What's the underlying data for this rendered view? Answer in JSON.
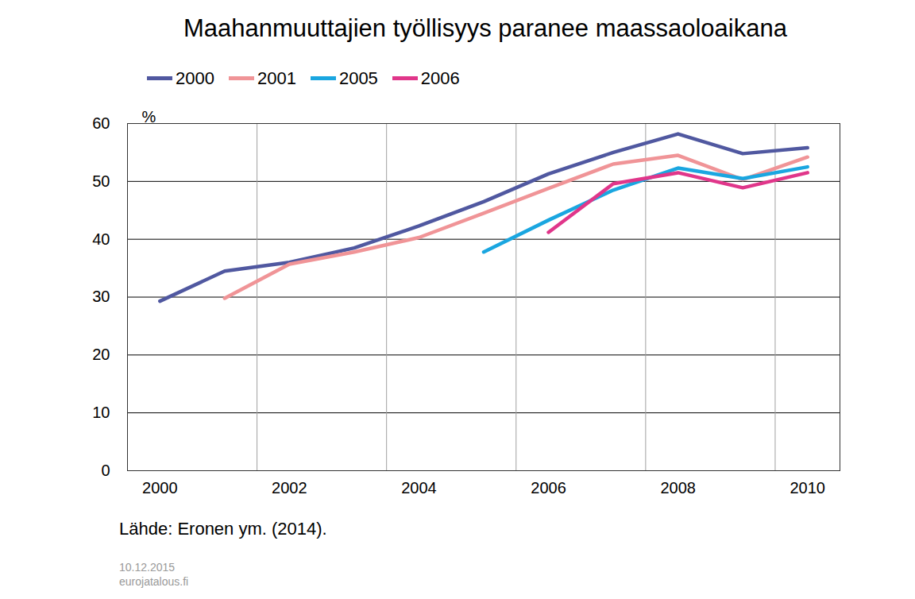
{
  "chart_data": {
    "type": "line",
    "title": "Maahanmuuttajien työllisyys paranee maassaoloaikana",
    "y_label": "%",
    "x": [
      2000,
      2001,
      2002,
      2003,
      2004,
      2005,
      2006,
      2007,
      2008,
      2009,
      2010
    ],
    "series": [
      {
        "name": "2000",
        "color": "#5058a0",
        "values": [
          29.3,
          34.5,
          36.0,
          38.5,
          42.3,
          46.5,
          51.3,
          55.0,
          58.2,
          54.8,
          55.8
        ]
      },
      {
        "name": "2001",
        "color": "#f09497",
        "values": [
          null,
          29.8,
          35.7,
          37.8,
          40.3,
          44.5,
          48.8,
          53.0,
          54.5,
          50.3,
          54.2
        ]
      },
      {
        "name": "2005",
        "color": "#1aa6e0",
        "values": [
          null,
          null,
          null,
          null,
          null,
          37.8,
          43.3,
          48.5,
          52.3,
          50.5,
          52.5
        ]
      },
      {
        "name": "2006",
        "color": "#e0368a",
        "values": [
          null,
          null,
          null,
          null,
          null,
          null,
          41.2,
          49.6,
          51.5,
          48.9,
          51.5
        ]
      }
    ],
    "xlim": [
      1999.5,
      2010.5
    ],
    "xticks": [
      2000,
      2002,
      2004,
      2006,
      2008,
      2010
    ],
    "ylim": [
      0,
      60
    ],
    "yticks": [
      0,
      10,
      20,
      30,
      40,
      50,
      60
    ],
    "grid": true,
    "legend": "top",
    "source": "Lähde: Eronen ym. (2014).",
    "annotations": [
      "10.12.2015",
      "eurojatalous.fi"
    ]
  }
}
